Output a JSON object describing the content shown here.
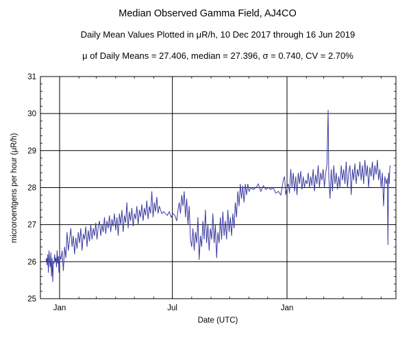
{
  "chart_data": {
    "type": "line",
    "title": "Median Observed Gamma Field, AJ4CO",
    "subtitle": "Daily Mean Values Plotted in μR/h, 10 Dec 2017 through 16 Jun 2019",
    "stats_line": "μ of Daily Means = 27.406,   median = 27.396,   σ = 0.740,   CV = 2.70%",
    "xlabel": "Date (UTC)",
    "ylabel": "microroentgens per hour (μR/h)",
    "x_start": "2017-12-10",
    "x_end": "2019-06-16",
    "ylim": [
      25,
      31
    ],
    "yticks": [
      25,
      26,
      27,
      28,
      29,
      30,
      31
    ],
    "xticks": [
      {
        "label": "Jan",
        "date": "2018-01-01"
      },
      {
        "label": "Jul",
        "date": "2018-07-01"
      },
      {
        "label": "Jan",
        "date": "2019-01-01"
      }
    ],
    "grid": true,
    "line_color": "#3a3aa0",
    "series": [
      {
        "values": [
          [
            "2017-12-10",
            26.0
          ],
          [
            "2017-12-11",
            26.1
          ],
          [
            "2017-12-12",
            25.9
          ],
          [
            "2017-12-13",
            26.2
          ],
          [
            "2017-12-14",
            25.7
          ],
          [
            "2017-12-15",
            26.3
          ],
          [
            "2017-12-16",
            26.0
          ],
          [
            "2017-12-17",
            25.85
          ],
          [
            "2017-12-18",
            26.25
          ],
          [
            "2017-12-19",
            25.6
          ],
          [
            "2017-12-20",
            26.1
          ],
          [
            "2017-12-21",
            25.45
          ],
          [
            "2017-12-22",
            26.0
          ],
          [
            "2017-12-23",
            25.95
          ],
          [
            "2017-12-24",
            26.2
          ],
          [
            "2017-12-25",
            26.0
          ],
          [
            "2017-12-26",
            26.1
          ],
          [
            "2017-12-27",
            25.85
          ],
          [
            "2017-12-28",
            26.3
          ],
          [
            "2017-12-29",
            25.95
          ],
          [
            "2017-12-30",
            26.15
          ],
          [
            "2017-12-31",
            25.7
          ],
          [
            "2018-01-01",
            26.2
          ],
          [
            "2018-01-03",
            26.05
          ],
          [
            "2018-01-05",
            26.3
          ],
          [
            "2018-01-07",
            25.75
          ],
          [
            "2018-01-09",
            26.4
          ],
          [
            "2018-01-11",
            26.1
          ],
          [
            "2018-01-13",
            26.8
          ],
          [
            "2018-01-15",
            26.3
          ],
          [
            "2018-01-17",
            26.6
          ],
          [
            "2018-01-19",
            26.9
          ],
          [
            "2018-01-21",
            26.4
          ],
          [
            "2018-01-23",
            26.7
          ],
          [
            "2018-01-25",
            26.2
          ],
          [
            "2018-01-27",
            26.65
          ],
          [
            "2018-01-29",
            26.35
          ],
          [
            "2018-01-31",
            26.8
          ],
          [
            "2018-02-02",
            26.5
          ],
          [
            "2018-02-04",
            26.9
          ],
          [
            "2018-02-06",
            26.3
          ],
          [
            "2018-02-08",
            26.75
          ],
          [
            "2018-02-10",
            26.6
          ],
          [
            "2018-02-12",
            26.95
          ],
          [
            "2018-02-14",
            26.4
          ],
          [
            "2018-02-16",
            26.85
          ],
          [
            "2018-02-18",
            26.55
          ],
          [
            "2018-02-20",
            27.0
          ],
          [
            "2018-02-22",
            26.6
          ],
          [
            "2018-02-24",
            26.9
          ],
          [
            "2018-02-26",
            26.7
          ],
          [
            "2018-02-28",
            27.05
          ],
          [
            "2018-03-02",
            26.6
          ],
          [
            "2018-03-04",
            26.95
          ],
          [
            "2018-03-06",
            27.1
          ],
          [
            "2018-03-08",
            26.7
          ],
          [
            "2018-03-10",
            27.0
          ],
          [
            "2018-03-12",
            26.8
          ],
          [
            "2018-03-14",
            27.2
          ],
          [
            "2018-03-16",
            26.75
          ],
          [
            "2018-03-18",
            27.1
          ],
          [
            "2018-03-20",
            26.9
          ],
          [
            "2018-03-22",
            27.25
          ],
          [
            "2018-03-24",
            26.8
          ],
          [
            "2018-03-26",
            27.15
          ],
          [
            "2018-03-28",
            26.95
          ],
          [
            "2018-03-30",
            27.3
          ],
          [
            "2018-04-01",
            26.85
          ],
          [
            "2018-04-03",
            27.2
          ],
          [
            "2018-04-05",
            26.7
          ],
          [
            "2018-04-07",
            27.3
          ],
          [
            "2018-04-09",
            27.0
          ],
          [
            "2018-04-11",
            27.4
          ],
          [
            "2018-04-13",
            26.8
          ],
          [
            "2018-04-15",
            27.25
          ],
          [
            "2018-04-17",
            27.05
          ],
          [
            "2018-04-19",
            27.6
          ],
          [
            "2018-04-21",
            26.9
          ],
          [
            "2018-04-23",
            27.35
          ],
          [
            "2018-04-25",
            27.1
          ],
          [
            "2018-04-27",
            27.45
          ],
          [
            "2018-04-29",
            26.95
          ],
          [
            "2018-05-01",
            27.3
          ],
          [
            "2018-05-03",
            27.15
          ],
          [
            "2018-05-05",
            27.5
          ],
          [
            "2018-05-07",
            27.0
          ],
          [
            "2018-05-09",
            27.4
          ],
          [
            "2018-05-11",
            27.2
          ],
          [
            "2018-05-13",
            27.55
          ],
          [
            "2018-05-15",
            27.1
          ],
          [
            "2018-05-17",
            27.45
          ],
          [
            "2018-05-19",
            27.25
          ],
          [
            "2018-05-21",
            27.65
          ],
          [
            "2018-05-23",
            27.15
          ],
          [
            "2018-05-25",
            27.5
          ],
          [
            "2018-05-27",
            27.3
          ],
          [
            "2018-05-29",
            27.9
          ],
          [
            "2018-05-31",
            27.2
          ],
          [
            "2018-06-02",
            27.6
          ],
          [
            "2018-06-04",
            27.35
          ],
          [
            "2018-06-06",
            27.75
          ],
          [
            "2018-06-08",
            27.3
          ],
          [
            "2018-06-10",
            27.5
          ],
          [
            "2018-06-12",
            27.4
          ],
          [
            "2018-06-14",
            27.3
          ],
          [
            "2018-06-17",
            27.35
          ],
          [
            "2018-06-20",
            27.3
          ],
          [
            "2018-06-23",
            27.25
          ],
          [
            "2018-06-26",
            27.35
          ],
          [
            "2018-06-29",
            27.2
          ],
          [
            "2018-07-02",
            27.3
          ],
          [
            "2018-07-05",
            27.25
          ],
          [
            "2018-07-08",
            27.1
          ],
          [
            "2018-07-10",
            27.4
          ],
          [
            "2018-07-12",
            27.6
          ],
          [
            "2018-07-14",
            27.3
          ],
          [
            "2018-07-16",
            27.8
          ],
          [
            "2018-07-18",
            27.5
          ],
          [
            "2018-07-20",
            27.9
          ],
          [
            "2018-07-22",
            27.2
          ],
          [
            "2018-07-24",
            27.7
          ],
          [
            "2018-07-26",
            27.0
          ],
          [
            "2018-07-28",
            27.5
          ],
          [
            "2018-07-30",
            26.6
          ],
          [
            "2018-08-01",
            26.4
          ],
          [
            "2018-08-03",
            26.9
          ],
          [
            "2018-08-05",
            26.3
          ],
          [
            "2018-08-07",
            26.8
          ],
          [
            "2018-08-09",
            26.5
          ],
          [
            "2018-08-11",
            27.2
          ],
          [
            "2018-08-13",
            26.05
          ],
          [
            "2018-08-15",
            26.7
          ],
          [
            "2018-08-17",
            26.4
          ],
          [
            "2018-08-19",
            27.1
          ],
          [
            "2018-08-21",
            26.6
          ],
          [
            "2018-08-23",
            27.4
          ],
          [
            "2018-08-25",
            26.5
          ],
          [
            "2018-08-27",
            27.0
          ],
          [
            "2018-08-29",
            26.3
          ],
          [
            "2018-08-31",
            26.9
          ],
          [
            "2018-09-02",
            26.6
          ],
          [
            "2018-09-04",
            27.3
          ],
          [
            "2018-09-06",
            26.5
          ],
          [
            "2018-09-08",
            27.0
          ],
          [
            "2018-09-10",
            26.1
          ],
          [
            "2018-09-12",
            26.8
          ],
          [
            "2018-09-14",
            26.5
          ],
          [
            "2018-09-16",
            27.2
          ],
          [
            "2018-09-18",
            26.6
          ],
          [
            "2018-09-20",
            27.35
          ],
          [
            "2018-09-22",
            26.7
          ],
          [
            "2018-09-24",
            27.1
          ],
          [
            "2018-09-26",
            26.6
          ],
          [
            "2018-09-28",
            27.4
          ],
          [
            "2018-09-30",
            26.8
          ],
          [
            "2018-10-02",
            27.2
          ],
          [
            "2018-10-04",
            26.7
          ],
          [
            "2018-10-06",
            27.3
          ],
          [
            "2018-10-08",
            26.9
          ],
          [
            "2018-10-10",
            27.6
          ],
          [
            "2018-10-12",
            27.2
          ],
          [
            "2018-10-14",
            27.9
          ],
          [
            "2018-10-16",
            27.5
          ],
          [
            "2018-10-18",
            28.1
          ],
          [
            "2018-10-20",
            27.7
          ],
          [
            "2018-10-22",
            28.05
          ],
          [
            "2018-10-24",
            27.6
          ],
          [
            "2018-10-26",
            28.1
          ],
          [
            "2018-10-28",
            27.8
          ],
          [
            "2018-10-30",
            28.1
          ],
          [
            "2018-11-01",
            27.9
          ],
          [
            "2018-11-04",
            28.0
          ],
          [
            "2018-11-08",
            27.95
          ],
          [
            "2018-11-12",
            28.0
          ],
          [
            "2018-11-16",
            28.1
          ],
          [
            "2018-11-20",
            27.9
          ],
          [
            "2018-11-24",
            28.05
          ],
          [
            "2018-11-28",
            27.95
          ],
          [
            "2018-12-02",
            28.0
          ],
          [
            "2018-12-06",
            27.95
          ],
          [
            "2018-12-10",
            28.0
          ],
          [
            "2018-12-14",
            27.85
          ],
          [
            "2018-12-18",
            27.9
          ],
          [
            "2018-12-22",
            27.8
          ],
          [
            "2018-12-26",
            28.2
          ],
          [
            "2018-12-28",
            28.3
          ],
          [
            "2018-12-30",
            27.8
          ],
          [
            "2019-01-01",
            28.0
          ],
          [
            "2019-01-03",
            28.1
          ],
          [
            "2019-01-05",
            27.85
          ],
          [
            "2019-01-07",
            28.5
          ],
          [
            "2019-01-09",
            28.0
          ],
          [
            "2019-01-11",
            28.4
          ],
          [
            "2019-01-13",
            27.9
          ],
          [
            "2019-01-15",
            28.3
          ],
          [
            "2019-01-17",
            27.8
          ],
          [
            "2019-01-19",
            28.4
          ],
          [
            "2019-01-21",
            28.1
          ],
          [
            "2019-01-23",
            28.45
          ],
          [
            "2019-01-25",
            27.95
          ],
          [
            "2019-01-27",
            28.3
          ],
          [
            "2019-01-29",
            28.0
          ],
          [
            "2019-01-31",
            28.2
          ],
          [
            "2019-02-02",
            28.1
          ],
          [
            "2019-02-04",
            28.4
          ],
          [
            "2019-02-06",
            28.0
          ],
          [
            "2019-02-08",
            28.3
          ],
          [
            "2019-02-10",
            28.05
          ],
          [
            "2019-02-12",
            28.5
          ],
          [
            "2019-02-14",
            27.9
          ],
          [
            "2019-02-16",
            28.35
          ],
          [
            "2019-02-18",
            28.1
          ],
          [
            "2019-02-20",
            28.6
          ],
          [
            "2019-02-22",
            28.0
          ],
          [
            "2019-02-24",
            28.4
          ],
          [
            "2019-02-26",
            28.2
          ],
          [
            "2019-02-28",
            28.5
          ],
          [
            "2019-03-02",
            28.0
          ],
          [
            "2019-03-04",
            28.4
          ],
          [
            "2019-03-06",
            28.6
          ],
          [
            "2019-03-08",
            30.1
          ],
          [
            "2019-03-09",
            28.3
          ],
          [
            "2019-03-11",
            27.7
          ],
          [
            "2019-03-13",
            28.5
          ],
          [
            "2019-03-15",
            27.9
          ],
          [
            "2019-03-17",
            28.6
          ],
          [
            "2019-03-19",
            28.1
          ],
          [
            "2019-03-21",
            28.4
          ],
          [
            "2019-03-23",
            27.95
          ],
          [
            "2019-03-25",
            28.3
          ],
          [
            "2019-03-27",
            28.0
          ],
          [
            "2019-03-29",
            28.6
          ],
          [
            "2019-03-31",
            28.2
          ],
          [
            "2019-04-02",
            28.5
          ],
          [
            "2019-04-04",
            28.1
          ],
          [
            "2019-04-06",
            28.7
          ],
          [
            "2019-04-08",
            28.0
          ],
          [
            "2019-04-10",
            28.4
          ],
          [
            "2019-04-12",
            28.6
          ],
          [
            "2019-04-14",
            27.8
          ],
          [
            "2019-04-16",
            28.5
          ],
          [
            "2019-04-18",
            28.2
          ],
          [
            "2019-04-20",
            28.65
          ],
          [
            "2019-04-22",
            28.1
          ],
          [
            "2019-04-24",
            28.5
          ],
          [
            "2019-04-26",
            28.3
          ],
          [
            "2019-04-28",
            28.7
          ],
          [
            "2019-04-30",
            28.2
          ],
          [
            "2019-05-02",
            28.6
          ],
          [
            "2019-05-04",
            28.1
          ],
          [
            "2019-05-06",
            28.75
          ],
          [
            "2019-05-08",
            28.3
          ],
          [
            "2019-05-10",
            28.6
          ],
          [
            "2019-05-12",
            28.0
          ],
          [
            "2019-05-14",
            28.55
          ],
          [
            "2019-05-16",
            28.3
          ],
          [
            "2019-05-18",
            28.7
          ],
          [
            "2019-05-20",
            28.2
          ],
          [
            "2019-05-22",
            28.6
          ],
          [
            "2019-05-24",
            28.35
          ],
          [
            "2019-05-26",
            28.75
          ],
          [
            "2019-05-28",
            28.2
          ],
          [
            "2019-05-30",
            28.5
          ],
          [
            "2019-06-01",
            28.0
          ],
          [
            "2019-06-03",
            28.4
          ],
          [
            "2019-06-05",
            27.5
          ],
          [
            "2019-06-07",
            28.3
          ],
          [
            "2019-06-09",
            28.1
          ],
          [
            "2019-06-11",
            28.25
          ],
          [
            "2019-06-12",
            26.45
          ],
          [
            "2019-06-13",
            28.4
          ],
          [
            "2019-06-14",
            28.1
          ],
          [
            "2019-06-15",
            28.55
          ],
          [
            "2019-06-16",
            28.6
          ]
        ]
      }
    ]
  }
}
